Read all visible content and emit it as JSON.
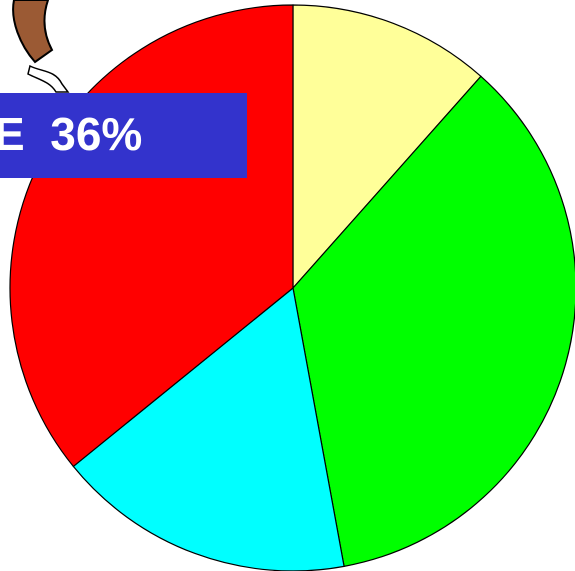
{
  "chart_data": {
    "type": "pie",
    "values": [
      11.6,
      35.7,
      17.1,
      36
    ],
    "colors": [
      "#ffff99",
      "#00ff00",
      "#00ffff",
      "#ff0000"
    ],
    "annotation": "E  36%"
  }
}
